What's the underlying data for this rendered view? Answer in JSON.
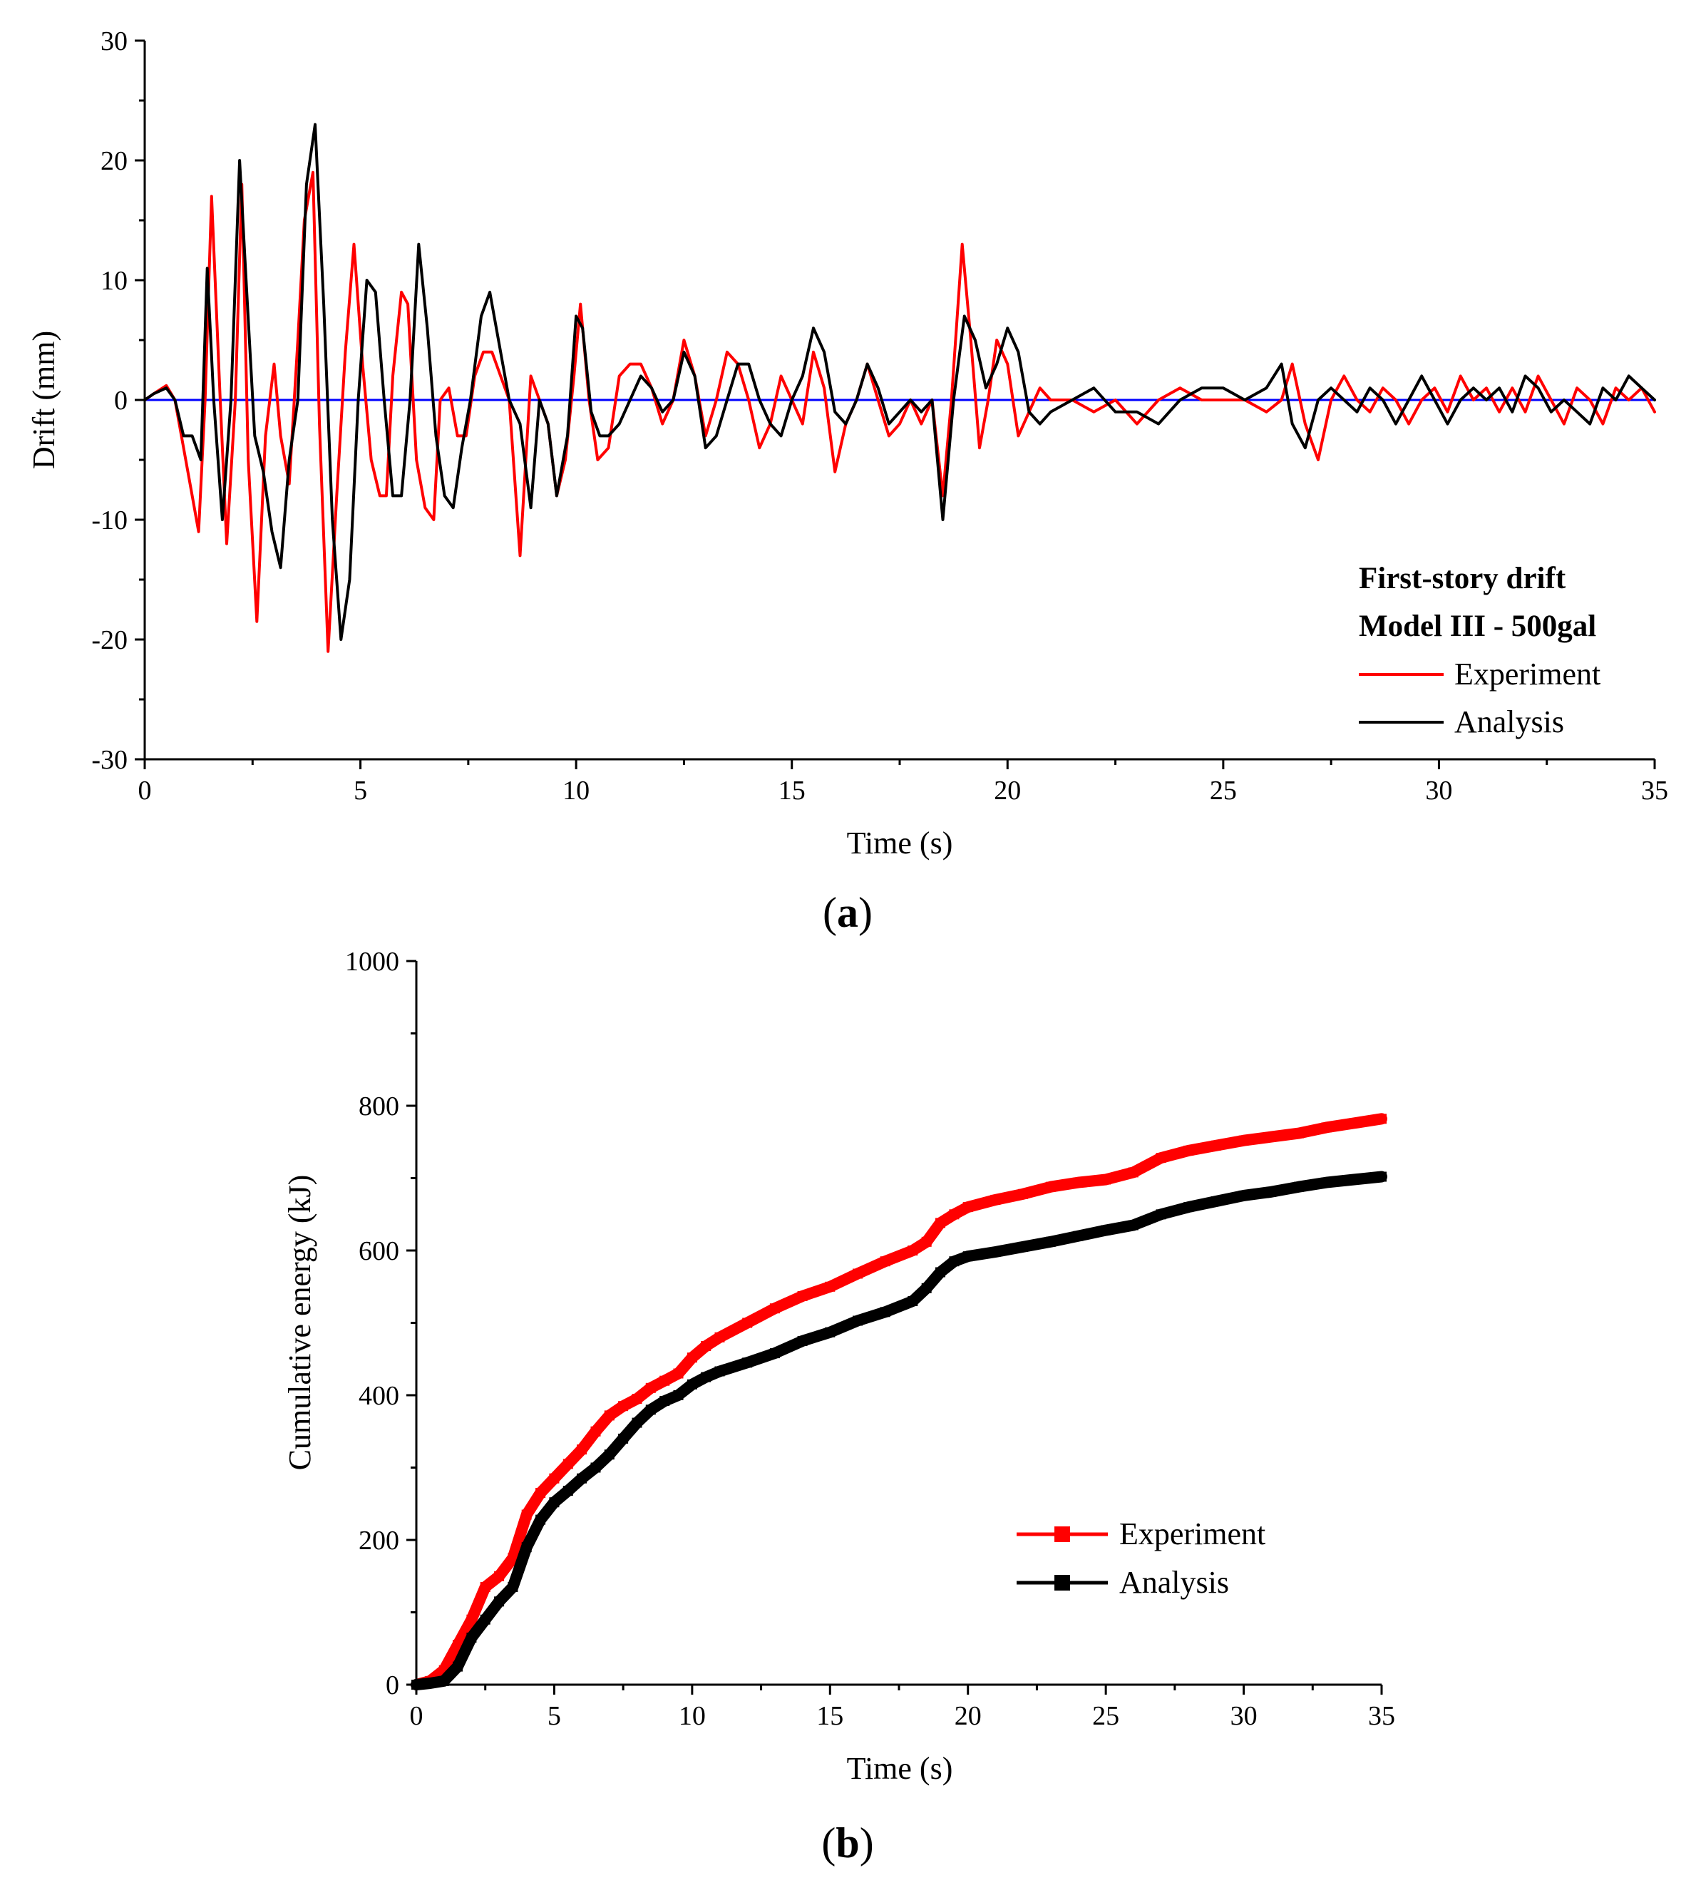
{
  "chart_data": [
    {
      "id": "a",
      "type": "line",
      "panel_label_letter": "a",
      "title": "",
      "xlabel": "Time (s)",
      "ylabel": "Drift (mm)",
      "xlim": [
        0,
        35
      ],
      "ylim": [
        -30,
        30
      ],
      "xticks": [
        0,
        5,
        10,
        15,
        20,
        25,
        30,
        35
      ],
      "yticks": [
        -30,
        -20,
        -10,
        0,
        10,
        20,
        30
      ],
      "xtick_labels": [
        "0",
        "5",
        "10",
        "15",
        "20",
        "25",
        "30",
        "35"
      ],
      "ytick_labels": [
        "-30",
        "-20",
        "-10",
        "0",
        "10",
        "20",
        "30"
      ],
      "grid": false,
      "legend_position": "bottom-right",
      "legend_title_lines": [
        "First-story drift",
        "Model III - 500gal"
      ],
      "zero_line": {
        "y": 0,
        "color": "#0000ff"
      },
      "series": [
        {
          "name": "Experiment",
          "color": "#ff0000",
          "x": [
            0,
            0.2,
            0.5,
            0.7,
            0.9,
            1.1,
            1.25,
            1.4,
            1.55,
            1.75,
            1.9,
            2.1,
            2.25,
            2.4,
            2.6,
            2.8,
            3.0,
            3.15,
            3.35,
            3.55,
            3.7,
            3.9,
            4.05,
            4.25,
            4.45,
            4.65,
            4.85,
            5.05,
            5.25,
            5.45,
            5.6,
            5.75,
            5.95,
            6.1,
            6.3,
            6.5,
            6.7,
            6.85,
            7.05,
            7.25,
            7.45,
            7.65,
            7.85,
            8.05,
            8.25,
            8.45,
            8.7,
            8.95,
            9.15,
            9.35,
            9.55,
            9.75,
            9.95,
            10.1,
            10.3,
            10.5,
            10.75,
            11.0,
            11.25,
            11.5,
            11.75,
            12.0,
            12.25,
            12.5,
            12.75,
            13.0,
            13.25,
            13.5,
            13.75,
            14.0,
            14.25,
            14.5,
            14.75,
            15.0,
            15.25,
            15.5,
            15.75,
            16.0,
            16.25,
            16.5,
            16.75,
            17.0,
            17.25,
            17.5,
            17.75,
            18.0,
            18.25,
            18.5,
            18.7,
            18.95,
            19.15,
            19.35,
            19.55,
            19.75,
            20.0,
            20.25,
            20.5,
            20.75,
            21.0,
            21.5,
            22.0,
            22.5,
            23.0,
            23.5,
            24.0,
            24.5,
            25.0,
            25.5,
            26.0,
            26.35,
            26.6,
            26.9,
            27.2,
            27.5,
            27.8,
            28.1,
            28.4,
            28.7,
            29.0,
            29.3,
            29.6,
            29.9,
            30.2,
            30.5,
            30.8,
            31.1,
            31.4,
            31.7,
            32.0,
            32.3,
            32.6,
            32.9,
            33.2,
            33.5,
            33.8,
            34.1,
            34.4,
            34.7,
            35.0
          ],
          "values": [
            0,
            0.5,
            1.2,
            0,
            -4,
            -8,
            -11,
            0,
            17,
            0,
            -12,
            0,
            18,
            -5,
            -18.5,
            -3,
            3,
            -3,
            -7,
            5,
            15,
            19,
            -2,
            -21,
            -8,
            4,
            13,
            3,
            -5,
            -8,
            -8,
            2,
            9,
            8,
            -5,
            -9,
            -10,
            0,
            1,
            -3,
            -3,
            2,
            4,
            4,
            2,
            0,
            -13,
            2,
            0,
            -2,
            -8,
            -5,
            2,
            8,
            0,
            -5,
            -4,
            2,
            3,
            3,
            1,
            -2,
            0,
            5,
            2,
            -3,
            0,
            4,
            3,
            0,
            -4,
            -2,
            2,
            0,
            -2,
            4,
            1,
            -6,
            -2,
            0,
            3,
            0,
            -3,
            -2,
            0,
            -2,
            0,
            -8,
            0,
            13,
            5,
            -4,
            0,
            5,
            3,
            -3,
            -1,
            1,
            0,
            0,
            -1,
            0,
            -2,
            0,
            1,
            0,
            0,
            0,
            -1,
            0,
            3,
            -2,
            -5,
            0,
            2,
            0,
            -1,
            1,
            0,
            -2,
            0,
            1,
            -1,
            2,
            0,
            1,
            -1,
            1,
            -1,
            2,
            0,
            -2,
            1,
            0,
            -2,
            1,
            0,
            1,
            -1
          ]
        },
        {
          "name": "Analysis",
          "color": "#000000",
          "x": [
            0,
            0.2,
            0.5,
            0.7,
            0.9,
            1.1,
            1.3,
            1.45,
            1.6,
            1.8,
            2.0,
            2.2,
            2.35,
            2.55,
            2.75,
            2.95,
            3.15,
            3.35,
            3.55,
            3.75,
            3.95,
            4.15,
            4.35,
            4.55,
            4.75,
            4.95,
            5.15,
            5.35,
            5.55,
            5.75,
            5.95,
            6.15,
            6.35,
            6.55,
            6.75,
            6.95,
            7.15,
            7.35,
            7.55,
            7.8,
            8.0,
            8.2,
            8.45,
            8.7,
            8.95,
            9.15,
            9.35,
            9.55,
            9.8,
            10.0,
            10.15,
            10.35,
            10.55,
            10.75,
            11.0,
            11.25,
            11.5,
            11.75,
            12.0,
            12.25,
            12.5,
            12.75,
            13.0,
            13.25,
            13.5,
            13.75,
            14.0,
            14.25,
            14.5,
            14.75,
            15.0,
            15.25,
            15.5,
            15.75,
            16.0,
            16.25,
            16.5,
            16.75,
            17.0,
            17.25,
            17.5,
            17.75,
            18.0,
            18.25,
            18.5,
            18.75,
            19.0,
            19.25,
            19.5,
            19.75,
            20.0,
            20.25,
            20.5,
            20.75,
            21.0,
            21.5,
            22.0,
            22.5,
            23.0,
            23.5,
            24.0,
            24.5,
            25.0,
            25.5,
            26.0,
            26.35,
            26.6,
            26.9,
            27.2,
            27.5,
            27.8,
            28.1,
            28.4,
            28.7,
            29.0,
            29.3,
            29.6,
            29.9,
            30.2,
            30.5,
            30.8,
            31.1,
            31.4,
            31.7,
            32.0,
            32.3,
            32.6,
            32.9,
            33.2,
            33.5,
            33.8,
            34.1,
            34.4,
            34.7,
            35.0
          ],
          "values": [
            0,
            0.5,
            1,
            0,
            -3,
            -3,
            -5,
            11,
            0,
            -10,
            0,
            20,
            10,
            -3,
            -6,
            -11,
            -14,
            -5,
            0,
            18,
            23,
            8,
            -10,
            -20,
            -15,
            0,
            10,
            9,
            0,
            -8,
            -8,
            0,
            13,
            6,
            -3,
            -8,
            -9,
            -4,
            0,
            7,
            9,
            5,
            0,
            -2,
            -9,
            0,
            -2,
            -8,
            -3,
            7,
            6,
            -1,
            -3,
            -3,
            -2,
            0,
            2,
            1,
            -1,
            0,
            4,
            2,
            -4,
            -3,
            0,
            3,
            3,
            0,
            -2,
            -3,
            0,
            2,
            6,
            4,
            -1,
            -2,
            0,
            3,
            1,
            -2,
            -1,
            0,
            -1,
            0,
            -10,
            0,
            7,
            5,
            1,
            3,
            6,
            4,
            -1,
            -2,
            -1,
            0,
            1,
            -1,
            -1,
            -2,
            0,
            1,
            1,
            0,
            1,
            3,
            -2,
            -4,
            0,
            1,
            0,
            -1,
            1,
            0,
            -2,
            0,
            2,
            0,
            -2,
            0,
            1,
            0,
            1,
            -1,
            2,
            1,
            -1,
            0,
            -1,
            -2,
            1,
            0,
            2,
            1,
            0
          ]
        }
      ]
    },
    {
      "id": "b",
      "type": "line",
      "panel_label_letter": "b",
      "title": "",
      "xlabel": "Time (s)",
      "ylabel": "Cumulative energy (kJ)",
      "xlim": [
        0,
        35
      ],
      "ylim": [
        0,
        1000
      ],
      "xticks": [
        0,
        5,
        10,
        15,
        20,
        25,
        30,
        35
      ],
      "yticks": [
        0,
        200,
        400,
        600,
        800,
        1000
      ],
      "xtick_labels": [
        "0",
        "5",
        "10",
        "15",
        "20",
        "25",
        "30",
        "35"
      ],
      "ytick_labels": [
        "0",
        "200",
        "400",
        "600",
        "800",
        "1000"
      ],
      "grid": false,
      "legend_position": "bottom-right",
      "series": [
        {
          "name": "Experiment",
          "color": "#ff0000",
          "marker": "square",
          "x": [
            0,
            0.5,
            1.0,
            1.5,
            2.0,
            2.5,
            3.0,
            3.5,
            4.0,
            4.5,
            5.0,
            5.5,
            6.0,
            6.5,
            7.0,
            7.5,
            8.0,
            8.5,
            9.0,
            9.5,
            10.0,
            10.5,
            11.0,
            12.0,
            13.0,
            14.0,
            15.0,
            16.0,
            17.0,
            18.0,
            18.5,
            19.0,
            19.5,
            20.0,
            21.0,
            22.0,
            23.0,
            24.0,
            25.0,
            26.0,
            27.0,
            28.0,
            29.0,
            30.0,
            31.0,
            32.0,
            33.0,
            34.0,
            35.0
          ],
          "values": [
            0,
            5,
            20,
            55,
            90,
            135,
            150,
            175,
            235,
            265,
            285,
            305,
            325,
            350,
            372,
            385,
            395,
            410,
            420,
            430,
            452,
            468,
            480,
            500,
            520,
            537,
            550,
            568,
            585,
            600,
            612,
            638,
            650,
            660,
            670,
            678,
            688,
            694,
            698,
            708,
            728,
            738,
            745,
            752,
            757,
            762,
            770,
            776,
            782
          ]
        },
        {
          "name": "Analysis",
          "color": "#000000",
          "marker": "square",
          "x": [
            0,
            0.5,
            1.0,
            1.5,
            2.0,
            2.5,
            3.0,
            3.5,
            4.0,
            4.5,
            5.0,
            5.5,
            6.0,
            6.5,
            7.0,
            7.5,
            8.0,
            8.5,
            9.0,
            9.5,
            10.0,
            10.5,
            11.0,
            12.0,
            13.0,
            14.0,
            15.0,
            16.0,
            17.0,
            18.0,
            18.5,
            19.0,
            19.5,
            20.0,
            21.0,
            22.0,
            23.0,
            24.0,
            25.0,
            26.0,
            27.0,
            28.0,
            29.0,
            30.0,
            31.0,
            32.0,
            33.0,
            34.0,
            35.0
          ],
          "values": [
            0,
            2,
            5,
            25,
            65,
            90,
            115,
            135,
            190,
            228,
            252,
            268,
            285,
            300,
            318,
            340,
            362,
            380,
            392,
            400,
            415,
            425,
            433,
            445,
            458,
            475,
            487,
            503,
            515,
            530,
            548,
            570,
            585,
            592,
            598,
            605,
            612,
            620,
            628,
            635,
            650,
            660,
            668,
            676,
            681,
            688,
            694,
            698,
            702
          ]
        }
      ]
    }
  ]
}
